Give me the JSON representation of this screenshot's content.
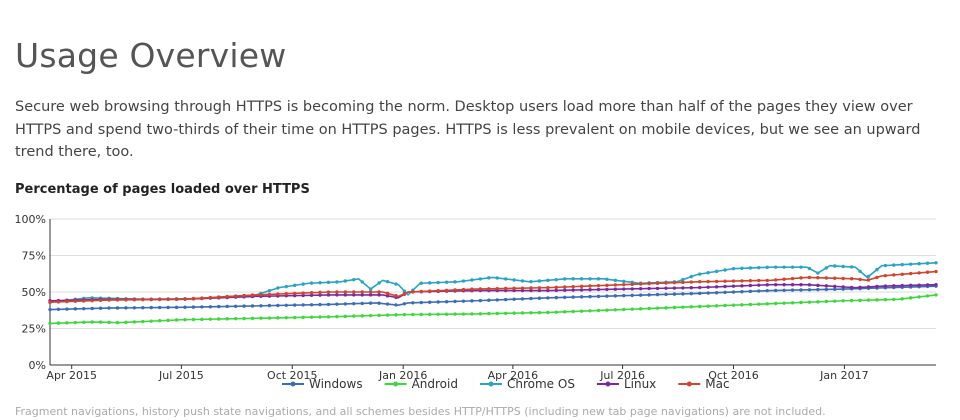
{
  "page": {
    "heading": "Usage Overview",
    "intro": "Secure web browsing through HTTPS is becoming the norm. Desktop users load more than half of the pages they view over HTTPS and spend two-thirds of their time on HTTPS pages. HTTPS is less prevalent on mobile devices, but we see an upward trend there, too.",
    "footnote": "Fragment navigations, history push state navigations, and all schemes besides HTTP/HTTPS (including new tab page navigations) are not included."
  },
  "chart_data": {
    "type": "line",
    "title": "Percentage of pages loaded over HTTPS",
    "xlabel": "",
    "ylabel": "",
    "x_range": [
      "2015-03-14",
      "2017-03-18"
    ],
    "ylim": [
      0,
      100
    ],
    "y_ticks": [
      "0%",
      "25%",
      "50%",
      "75%",
      "100%"
    ],
    "x_ticks": [
      {
        "date": "2015-04-01",
        "label": "Apr 2015"
      },
      {
        "date": "2015-07-01",
        "label": "Jul 2015"
      },
      {
        "date": "2015-10-01",
        "label": "Oct 2015"
      },
      {
        "date": "2016-01-01",
        "label": "Jan 2016"
      },
      {
        "date": "2016-04-01",
        "label": "Apr 2016"
      },
      {
        "date": "2016-07-01",
        "label": "Jul 2016"
      },
      {
        "date": "2016-10-01",
        "label": "Oct 2016"
      },
      {
        "date": "2017-01-01",
        "label": "Jan 2017"
      }
    ],
    "grid": true,
    "legend_position": "bottom",
    "series": [
      {
        "name": "Windows",
        "color": "#3b6db5",
        "points": [
          [
            "2015-03-14",
            38
          ],
          [
            "2015-05-01",
            39
          ],
          [
            "2015-07-01",
            39.5
          ],
          [
            "2015-09-01",
            40.5
          ],
          [
            "2015-11-01",
            41.5
          ],
          [
            "2015-12-10",
            42.5
          ],
          [
            "2015-12-28",
            41
          ],
          [
            "2016-01-05",
            42.5
          ],
          [
            "2016-03-01",
            44
          ],
          [
            "2016-05-01",
            46
          ],
          [
            "2016-07-01",
            47.5
          ],
          [
            "2016-09-01",
            49
          ],
          [
            "2016-11-01",
            51
          ],
          [
            "2017-01-01",
            52
          ],
          [
            "2017-03-18",
            54
          ]
        ]
      },
      {
        "name": "Android",
        "color": "#3ed83e",
        "points": [
          [
            "2015-03-14",
            28.5
          ],
          [
            "2015-04-20",
            29.5
          ],
          [
            "2015-05-10",
            29
          ],
          [
            "2015-07-01",
            31
          ],
          [
            "2015-09-01",
            32
          ],
          [
            "2015-11-01",
            33
          ],
          [
            "2016-01-01",
            34.5
          ],
          [
            "2016-03-01",
            35
          ],
          [
            "2016-05-01",
            36
          ],
          [
            "2016-07-01",
            38
          ],
          [
            "2016-09-01",
            40
          ],
          [
            "2016-11-01",
            42
          ],
          [
            "2017-01-01",
            44
          ],
          [
            "2017-02-15",
            45
          ],
          [
            "2017-03-18",
            48
          ]
        ]
      },
      {
        "name": "Chrome OS",
        "color": "#2aa3c4",
        "points": [
          [
            "2015-03-14",
            43
          ],
          [
            "2015-04-15",
            46
          ],
          [
            "2015-06-01",
            45
          ],
          [
            "2015-07-15",
            45.5
          ],
          [
            "2015-09-01",
            48
          ],
          [
            "2015-09-20",
            53
          ],
          [
            "2015-10-15",
            56
          ],
          [
            "2015-11-10",
            57
          ],
          [
            "2015-11-25",
            59
          ],
          [
            "2015-12-05",
            52
          ],
          [
            "2015-12-15",
            58
          ],
          [
            "2015-12-28",
            55
          ],
          [
            "2016-01-05",
            48
          ],
          [
            "2016-01-15",
            56
          ],
          [
            "2016-02-15",
            57
          ],
          [
            "2016-03-15",
            60
          ],
          [
            "2016-04-15",
            57
          ],
          [
            "2016-05-15",
            59
          ],
          [
            "2016-06-15",
            59
          ],
          [
            "2016-07-15",
            56
          ],
          [
            "2016-08-15",
            57
          ],
          [
            "2016-09-01",
            62
          ],
          [
            "2016-10-01",
            66
          ],
          [
            "2016-11-01",
            67
          ],
          [
            "2016-12-01",
            67
          ],
          [
            "2016-12-10",
            63
          ],
          [
            "2016-12-20",
            68
          ],
          [
            "2017-01-10",
            67
          ],
          [
            "2017-01-20",
            60
          ],
          [
            "2017-02-01",
            68
          ],
          [
            "2017-03-18",
            70
          ]
        ]
      },
      {
        "name": "Linux",
        "color": "#7b2a9e",
        "points": [
          [
            "2015-03-14",
            44
          ],
          [
            "2015-05-01",
            45
          ],
          [
            "2015-07-01",
            45
          ],
          [
            "2015-09-01",
            47
          ],
          [
            "2015-11-01",
            48
          ],
          [
            "2015-12-15",
            48
          ],
          [
            "2015-12-28",
            46
          ],
          [
            "2016-01-05",
            50
          ],
          [
            "2016-03-01",
            51
          ],
          [
            "2016-05-01",
            51
          ],
          [
            "2016-07-01",
            52
          ],
          [
            "2016-09-01",
            53
          ],
          [
            "2016-10-01",
            54
          ],
          [
            "2016-11-01",
            55
          ],
          [
            "2016-12-01",
            55
          ],
          [
            "2017-01-10",
            53
          ],
          [
            "2017-02-01",
            54
          ],
          [
            "2017-03-18",
            55
          ]
        ]
      },
      {
        "name": "Mac",
        "color": "#d0452e",
        "points": [
          [
            "2015-03-14",
            43
          ],
          [
            "2015-05-01",
            44.5
          ],
          [
            "2015-07-01",
            45
          ],
          [
            "2015-09-01",
            48
          ],
          [
            "2015-11-01",
            50
          ],
          [
            "2015-12-15",
            50
          ],
          [
            "2015-12-28",
            47
          ],
          [
            "2016-01-05",
            50
          ],
          [
            "2016-03-01",
            52
          ],
          [
            "2016-05-01",
            53
          ],
          [
            "2016-07-01",
            55
          ],
          [
            "2016-09-01",
            57
          ],
          [
            "2016-11-01",
            58
          ],
          [
            "2016-12-01",
            60
          ],
          [
            "2017-01-10",
            59
          ],
          [
            "2017-01-20",
            58
          ],
          [
            "2017-02-01",
            61
          ],
          [
            "2017-03-18",
            64
          ]
        ]
      }
    ]
  }
}
